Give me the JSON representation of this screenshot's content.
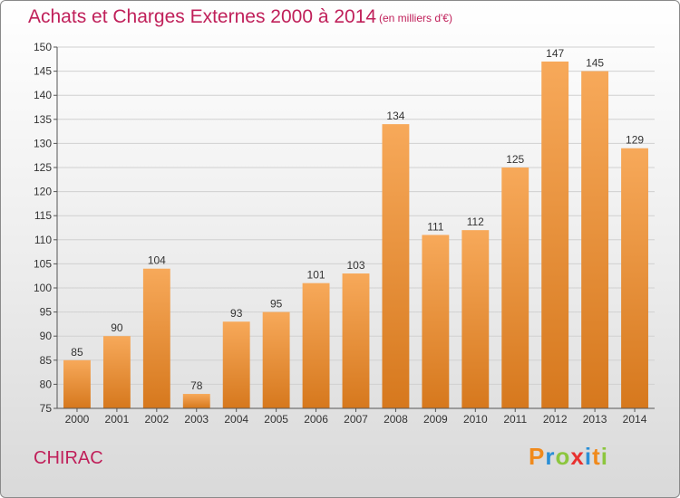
{
  "title": "Achats et Charges Externes 2000 à 2014",
  "subtitle": "(en milliers d'€)",
  "commune": "CHIRAC",
  "logo": {
    "text": "Proxiti",
    "letter_colors": [
      "#f08a1c",
      "#2a8fd6",
      "#8cc63e",
      "#e8312f",
      "#2a8fd6",
      "#f08a1c",
      "#8cc63e"
    ]
  },
  "colors": {
    "title": "#c0205a",
    "bar_top": "#f7a95a",
    "bar_bottom": "#d6781d",
    "grid": "#d0d0d0"
  },
  "chart_data": {
    "type": "bar",
    "categories": [
      "2000",
      "2001",
      "2002",
      "2003",
      "2004",
      "2005",
      "2006",
      "2007",
      "2008",
      "2009",
      "2010",
      "2011",
      "2012",
      "2013",
      "2014"
    ],
    "values": [
      85,
      90,
      104,
      78,
      93,
      95,
      101,
      103,
      134,
      111,
      112,
      125,
      147,
      145,
      129
    ],
    "ylim": [
      75,
      150
    ],
    "yticks": [
      75,
      80,
      85,
      90,
      95,
      100,
      105,
      110,
      115,
      120,
      125,
      130,
      135,
      140,
      145,
      150
    ],
    "grid": true,
    "xlabel": "",
    "ylabel": ""
  }
}
